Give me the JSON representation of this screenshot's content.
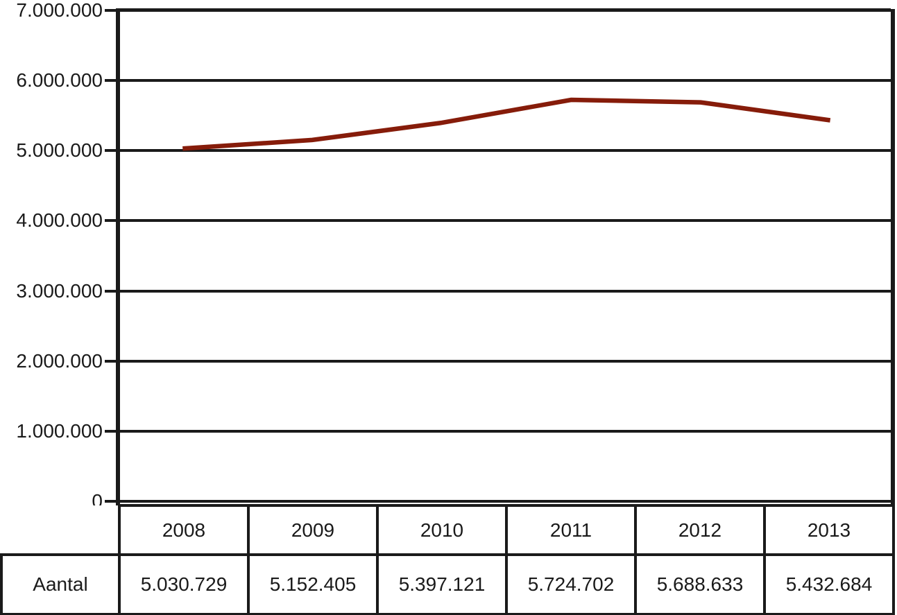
{
  "chart_data": {
    "type": "line",
    "categories": [
      "2008",
      "2009",
      "2010",
      "2011",
      "2012",
      "2013"
    ],
    "series": [
      {
        "name": "Aantal",
        "values": [
          5030729,
          5152405,
          5397121,
          5724702,
          5688633,
          5432684
        ],
        "color": "#861c0a"
      }
    ],
    "title": "",
    "xlabel": "",
    "ylabel": "",
    "ylim": [
      0,
      7000000
    ],
    "ytick_step": 1000000,
    "ytick_labels": [
      "0",
      "1.000.000",
      "2.000.000",
      "3.000.000",
      "4.000.000",
      "5.000.000",
      "6.000.000",
      "7.000.000"
    ],
    "grid": true,
    "legend_position": "none",
    "data_table": {
      "row_label": "Aantal",
      "cell_values": [
        "5.030.729",
        "5.152.405",
        "5.397.121",
        "5.724.702",
        "5.688.633",
        "5.432.684"
      ]
    }
  },
  "colors": {
    "line": "#861c0a",
    "axis": "#1a1a1a",
    "text": "#1a1a1a",
    "background": "#ffffff"
  }
}
